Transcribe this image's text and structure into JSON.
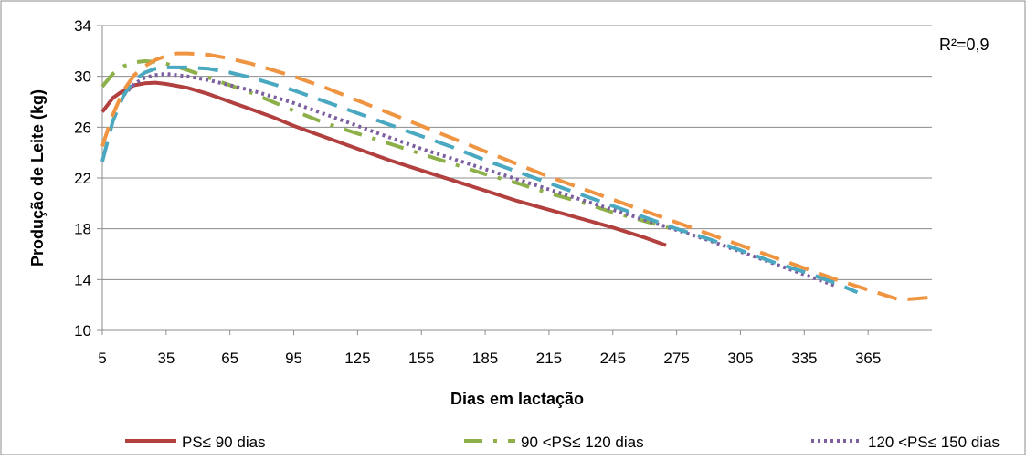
{
  "chart_data": {
    "type": "line",
    "title": "",
    "xlabel": "Dias em lactação",
    "ylabel": "Produção de Leite (kg)",
    "annotation": "R²=0,9",
    "xlim": [
      5,
      395
    ],
    "ylim": [
      10,
      34
    ],
    "x_ticks": [
      "5",
      "35",
      "65",
      "95",
      "125",
      "155",
      "185",
      "215",
      "245",
      "275",
      "305",
      "335",
      "365"
    ],
    "y_ticks": [
      "10",
      "14",
      "18",
      "22",
      "26",
      "30",
      "34"
    ],
    "grid": "horizontal",
    "legend_position": "bottom",
    "series": [
      {
        "name": "PS≤ 90 dias",
        "color": "#b1403f",
        "style": "solid",
        "x": [
          5,
          10,
          15,
          20,
          25,
          30,
          35,
          45,
          55,
          65,
          75,
          85,
          95,
          110,
          125,
          140,
          155,
          170,
          185,
          200,
          215,
          230,
          245,
          260,
          270
        ],
        "y": [
          27.2,
          28.3,
          28.9,
          29.3,
          29.45,
          29.5,
          29.4,
          29.1,
          28.6,
          28.0,
          27.4,
          26.8,
          26.1,
          25.2,
          24.3,
          23.4,
          22.6,
          21.8,
          21.0,
          20.2,
          19.5,
          18.8,
          18.1,
          17.3,
          16.7
        ]
      },
      {
        "name": "90 <PS≤ 120 dias",
        "color": "#8db04a",
        "style": "dash-dot",
        "x": [
          5,
          10,
          15,
          20,
          25,
          30,
          35,
          45,
          55,
          65,
          75,
          85,
          95,
          110,
          125,
          140,
          155,
          170,
          185,
          200,
          215,
          230,
          245,
          260,
          275
        ],
        "y": [
          29.2,
          30.2,
          30.8,
          31.1,
          31.2,
          31.15,
          31.0,
          30.5,
          29.9,
          29.3,
          28.7,
          28.0,
          27.3,
          26.3,
          25.5,
          24.7,
          23.9,
          23.1,
          22.3,
          21.6,
          20.8,
          20.1,
          19.3,
          18.6,
          17.9
        ]
      },
      {
        "name": "120 <PS≤ 150 dias",
        "color": "#7d5fa0",
        "style": "dotted",
        "x": [
          15,
          20,
          25,
          30,
          35,
          40,
          45,
          55,
          65,
          75,
          85,
          95,
          110,
          125,
          140,
          155,
          170,
          185,
          200,
          215,
          230,
          245,
          260,
          275,
          290,
          305,
          320,
          335,
          350
        ],
        "y": [
          28.5,
          29.4,
          29.9,
          30.1,
          30.2,
          30.1,
          30.0,
          29.7,
          29.3,
          28.9,
          28.4,
          27.9,
          27.0,
          26.1,
          25.2,
          24.3,
          23.5,
          22.7,
          21.9,
          21.1,
          20.3,
          19.5,
          18.7,
          17.9,
          17.1,
          16.2,
          15.3,
          14.4,
          13.5
        ]
      },
      {
        "name": "",
        "color": "#4aa8c0",
        "style": "dashed",
        "x": [
          5,
          10,
          15,
          20,
          25,
          30,
          35,
          45,
          55,
          65,
          75,
          85,
          95,
          110,
          125,
          140,
          155,
          170,
          185,
          200,
          215,
          230,
          245,
          260,
          275,
          290,
          305,
          320,
          335,
          350,
          360
        ],
        "y": [
          23.3,
          26.5,
          28.5,
          29.7,
          30.3,
          30.6,
          30.7,
          30.7,
          30.6,
          30.3,
          29.9,
          29.4,
          28.9,
          28.0,
          27.1,
          26.2,
          25.3,
          24.4,
          23.4,
          22.5,
          21.6,
          20.7,
          19.8,
          18.9,
          18.0,
          17.2,
          16.3,
          15.4,
          14.6,
          13.7,
          13.0
        ]
      },
      {
        "name": "",
        "color": "#ef9441",
        "style": "dashed",
        "x": [
          5,
          10,
          15,
          20,
          25,
          30,
          35,
          40,
          45,
          55,
          65,
          75,
          85,
          95,
          110,
          125,
          140,
          155,
          170,
          185,
          200,
          215,
          230,
          245,
          260,
          275,
          290,
          305,
          320,
          335,
          350,
          365,
          380,
          395
        ],
        "y": [
          24.5,
          27.0,
          28.9,
          30.1,
          30.8,
          31.3,
          31.6,
          31.8,
          31.8,
          31.7,
          31.4,
          31.0,
          30.5,
          30.0,
          29.1,
          28.1,
          27.1,
          26.1,
          25.1,
          24.1,
          23.1,
          22.1,
          21.2,
          20.3,
          19.4,
          18.5,
          17.6,
          16.7,
          15.8,
          14.9,
          14.0,
          13.2,
          12.4,
          12.6
        ]
      }
    ]
  }
}
